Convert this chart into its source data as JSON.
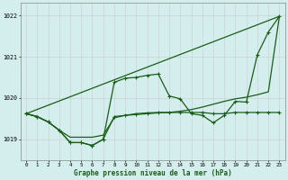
{
  "title": "Graphe pression niveau de la mer (hPa)",
  "background_color": "#d4eeed",
  "grid_color": "#c8c8c8",
  "line_color": "#1a5c1a",
  "xlim": [
    -0.5,
    23.5
  ],
  "ylim": [
    1018.5,
    1022.3
  ],
  "yticks": [
    1019,
    1020,
    1021,
    1022
  ],
  "xticks": [
    0,
    1,
    2,
    3,
    4,
    5,
    6,
    7,
    8,
    9,
    10,
    11,
    12,
    13,
    14,
    15,
    16,
    17,
    18,
    19,
    20,
    21,
    22,
    23
  ],
  "line1": [
    1019.62,
    1019.55,
    1019.42,
    1019.22,
    1019.05,
    1019.05,
    1019.05,
    1019.1,
    1019.52,
    1019.58,
    1019.62,
    1019.64,
    1019.65,
    1019.65,
    1019.68,
    1019.72,
    1019.78,
    1019.85,
    1019.92,
    1019.98,
    1020.02,
    1020.08,
    1020.15,
    1021.98
  ],
  "line2": [
    1019.62,
    1019.55,
    1019.42,
    1019.22,
    1018.92,
    1018.92,
    1018.85,
    1019.0,
    1020.38,
    1020.48,
    1020.5,
    1020.55,
    1020.58,
    1020.05,
    1019.98,
    1019.62,
    1019.58,
    1019.4,
    1019.58,
    1019.92,
    1019.9,
    1021.05,
    1021.6,
    1021.98
  ],
  "line3": [
    1019.62,
    1019.55,
    1019.42,
    1019.22,
    1018.92,
    1018.92,
    1018.85,
    1019.0,
    1019.55,
    1019.58,
    1019.6,
    1019.62,
    1019.64,
    1019.65,
    1019.65,
    1019.65,
    1019.65,
    1019.62,
    1019.62,
    1019.65,
    1019.65,
    1019.65,
    1019.65,
    1019.65
  ],
  "line4_x": [
    0,
    23
  ],
  "line4_y": [
    1019.62,
    1021.98
  ]
}
